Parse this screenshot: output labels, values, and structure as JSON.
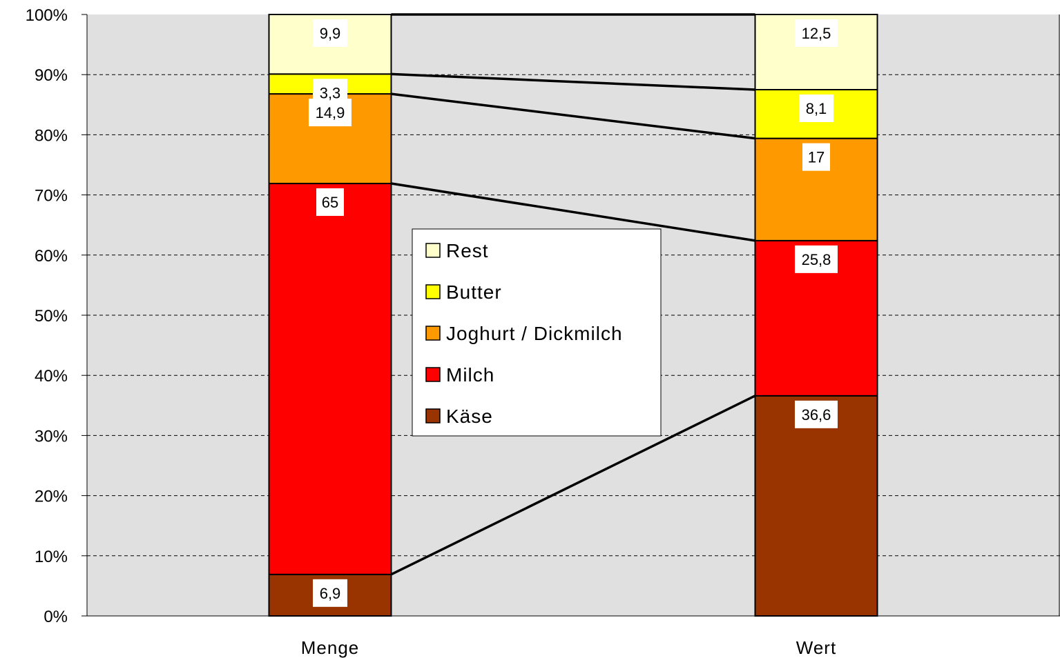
{
  "chart_data": {
    "type": "bar",
    "stacked": true,
    "percent_stacked": true,
    "title": "",
    "xlabel": "",
    "ylabel": "",
    "ylim": [
      0,
      100
    ],
    "y_ticks": [
      "0%",
      "10%",
      "20%",
      "30%",
      "40%",
      "50%",
      "60%",
      "70%",
      "80%",
      "90%",
      "100%"
    ],
    "categories": [
      "Menge",
      "Wert"
    ],
    "series": [
      {
        "name": "Käse",
        "color": "#993300",
        "values": [
          6.9,
          36.6
        ],
        "labels": [
          "6,9",
          "36,6"
        ]
      },
      {
        "name": "Milch",
        "color": "#ff0000",
        "values": [
          65,
          25.8
        ],
        "labels": [
          "65",
          "25,8"
        ]
      },
      {
        "name": "Joghurt / Dickmilch",
        "color": "#ff9900",
        "values": [
          14.9,
          17
        ],
        "labels": [
          "14,9",
          "17"
        ]
      },
      {
        "name": "Butter",
        "color": "#ffff00",
        "values": [
          3.3,
          8.1
        ],
        "labels": [
          "3,3",
          "8,1"
        ]
      },
      {
        "name": "Rest",
        "color": "#ffffcc",
        "values": [
          9.9,
          12.5
        ],
        "labels": [
          "9,9",
          "12,5"
        ]
      }
    ],
    "series_lines": true,
    "grid": true,
    "grid_style": "dashed",
    "plot_background": "#e0e0e0",
    "legend": {
      "position": "center",
      "order": [
        "Rest",
        "Butter",
        "Joghurt / Dickmilch",
        "Milch",
        "Käse"
      ]
    }
  }
}
